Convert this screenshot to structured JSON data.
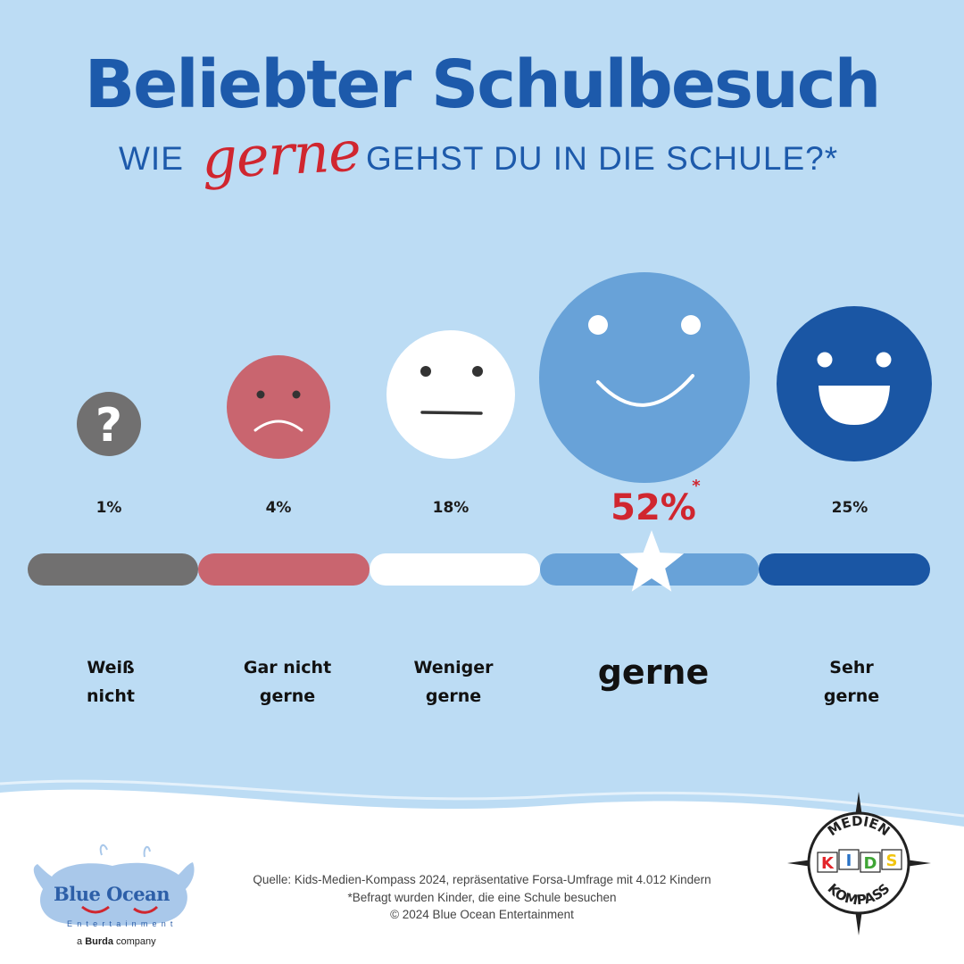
{
  "header": {
    "title": "Beliebter Schulbesuch",
    "subtitle_before": "WIE",
    "subtitle_highlight": "gerne",
    "subtitle_after": "GEHST DU IN DIE SCHULE?*"
  },
  "colors": {
    "background": "#bcdcf4",
    "title": "#1d5aab",
    "highlight": "#d0262f",
    "weiss_nicht": "#717070",
    "gar_nicht_gerne": "#c9656f",
    "weniger_gerne": "#ffffff",
    "gerne": "#68a2d8",
    "sehr_gerne": "#1a56a4"
  },
  "chart_data": {
    "type": "bar",
    "categories": [
      "Weiß nicht",
      "Gar nicht gerne",
      "Weniger gerne",
      "gerne",
      "Sehr gerne"
    ],
    "category_lines": [
      [
        "Weiß",
        "nicht"
      ],
      [
        "Gar nicht",
        "gerne"
      ],
      [
        "Weniger",
        "gerne"
      ],
      [
        "gerne"
      ],
      [
        "Sehr",
        "gerne"
      ]
    ],
    "values": [
      1,
      4,
      18,
      52,
      25
    ],
    "value_labels": [
      "1%",
      "4%",
      "18%",
      "52%",
      "25%"
    ],
    "highlight_index": 3,
    "highlight_marker": "*",
    "icons": [
      "question-icon",
      "sad-face-icon",
      "neutral-face-icon",
      "smile-face-icon",
      "laughing-face-icon"
    ],
    "highlight_icon": "star-icon"
  },
  "footer": {
    "source_lines": [
      "Quelle: Kids-Medien-Kompass 2024, repräsentative Forsa-Umfrage mit 4.012 Kindern",
      "*Befragt wurden Kinder, die eine Schule besuchen",
      "© 2024 Blue Ocean Entertainment"
    ],
    "logo_left_name": "Blue Ocean",
    "logo_left_sub": "Entertainment",
    "logo_left_prefix": "a",
    "logo_left_brand": "Burda",
    "logo_left_suffix": "company",
    "logo_right_top": "MEDIEN",
    "logo_right_letters": [
      "K",
      "I",
      "D",
      "S"
    ],
    "logo_right_letter_colors": [
      "#e3262b",
      "#2a73c6",
      "#3fa535",
      "#f1c40f"
    ],
    "logo_right_bottom": "KOMPASS"
  }
}
